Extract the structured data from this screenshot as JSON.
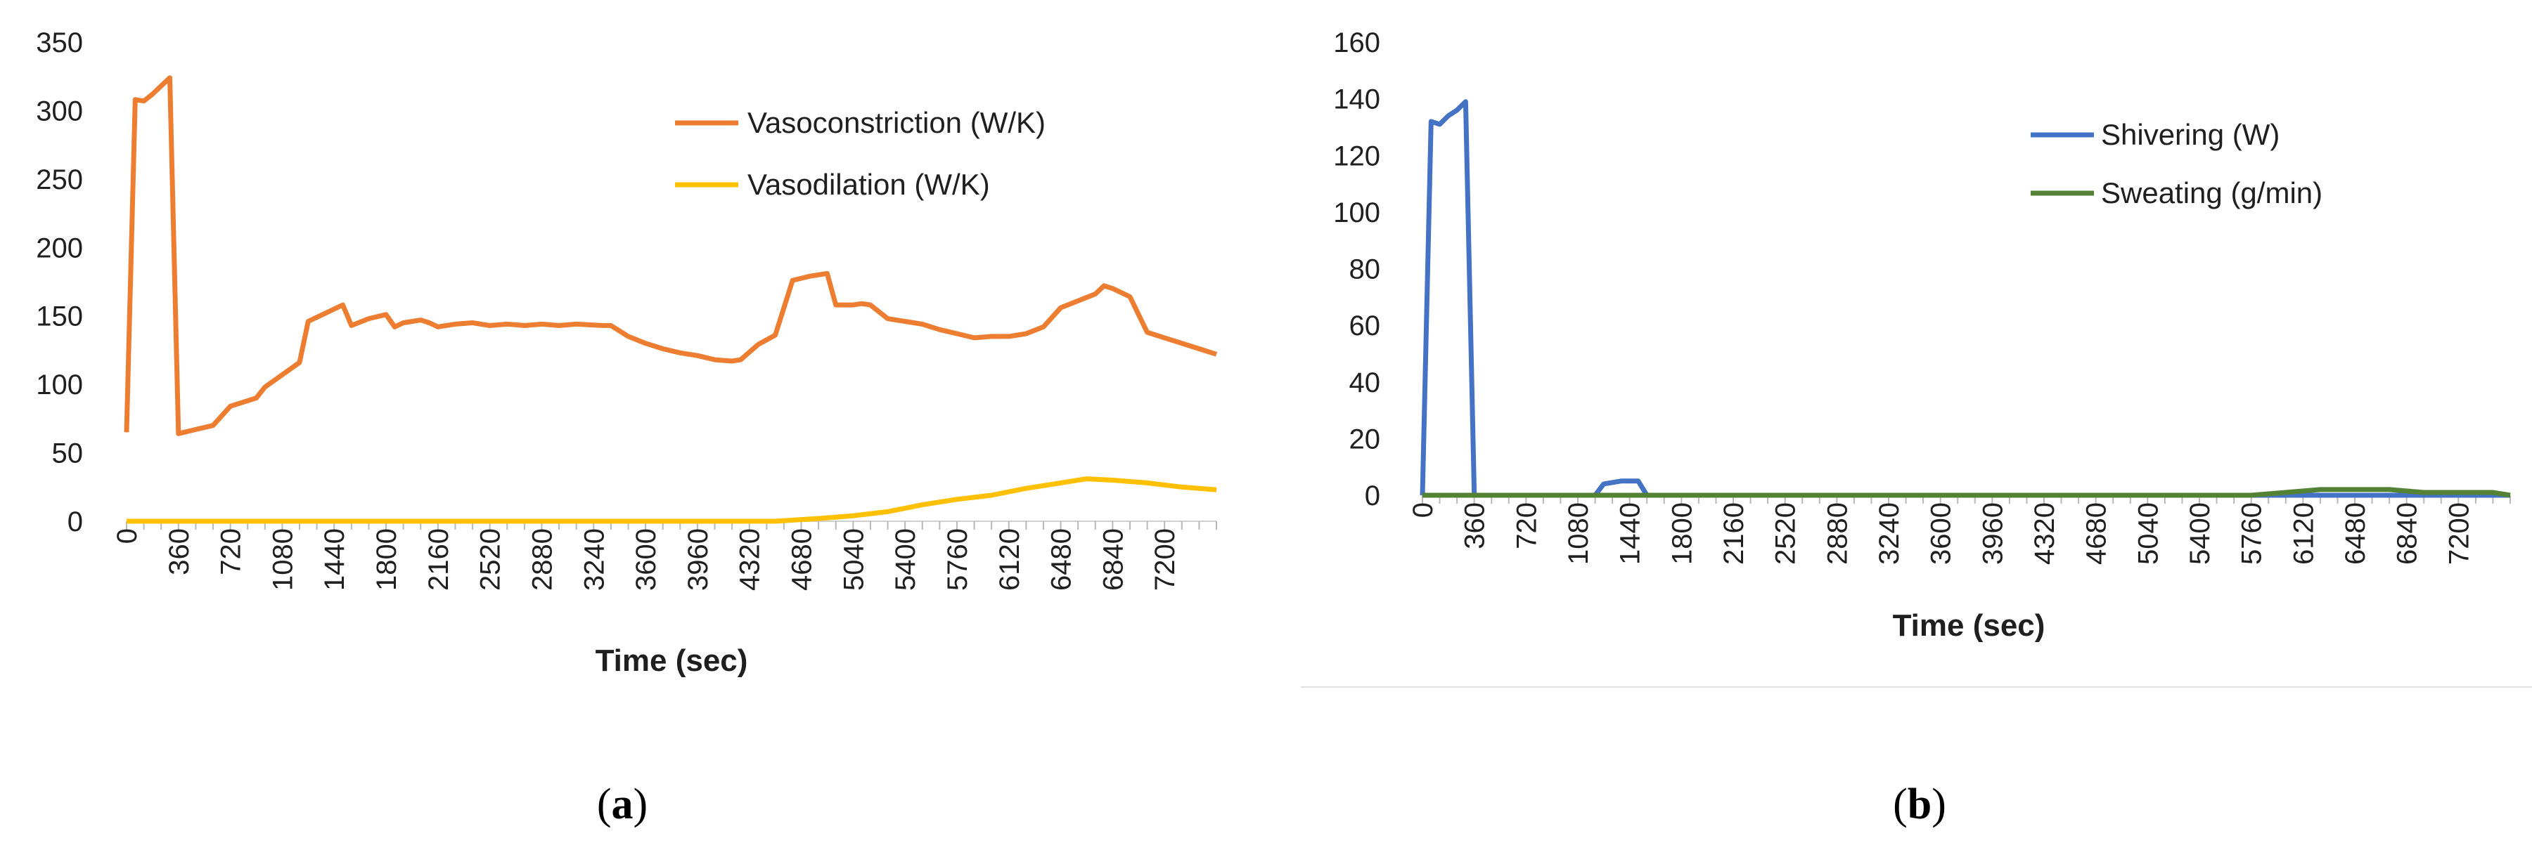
{
  "chart_data": [
    {
      "id": "a",
      "type": "line",
      "caption_letter": "a",
      "xlabel": "Time (sec)",
      "ylabel": "",
      "ylim": [
        0,
        350
      ],
      "yticks": [
        0,
        50,
        100,
        150,
        200,
        250,
        300,
        350
      ],
      "xlim": [
        0,
        7560
      ],
      "x_tick_labels": [
        "0",
        "360",
        "720",
        "1080",
        "1440",
        "1800",
        "2160",
        "2520",
        "2880",
        "3240",
        "3600",
        "3960",
        "4320",
        "4680",
        "5040",
        "5400",
        "5760",
        "6120",
        "6480",
        "6840",
        "7200"
      ],
      "legend_position": "top-right",
      "series": [
        {
          "name": "Vasoconstriction (W/K)",
          "color": "#ED7D31",
          "points": [
            [
              0,
              65
            ],
            [
              60,
              308
            ],
            [
              120,
              307
            ],
            [
              180,
              312
            ],
            [
              300,
              324
            ],
            [
              360,
              64
            ],
            [
              480,
              67
            ],
            [
              600,
              70
            ],
            [
              720,
              84
            ],
            [
              900,
              90
            ],
            [
              960,
              98
            ],
            [
              1200,
              116
            ],
            [
              1260,
              146
            ],
            [
              1500,
              158
            ],
            [
              1560,
              143
            ],
            [
              1680,
              148
            ],
            [
              1800,
              151
            ],
            [
              1860,
              142
            ],
            [
              1920,
              145
            ],
            [
              2040,
              147
            ],
            [
              2100,
              145
            ],
            [
              2160,
              142
            ],
            [
              2280,
              144
            ],
            [
              2400,
              145
            ],
            [
              2520,
              143
            ],
            [
              2640,
              144
            ],
            [
              2760,
              143
            ],
            [
              2880,
              144
            ],
            [
              3000,
              143
            ],
            [
              3120,
              144
            ],
            [
              3300,
              143
            ],
            [
              3360,
              143
            ],
            [
              3480,
              135
            ],
            [
              3600,
              130
            ],
            [
              3720,
              126
            ],
            [
              3840,
              123
            ],
            [
              3960,
              121
            ],
            [
              4080,
              118
            ],
            [
              4200,
              117
            ],
            [
              4260,
              118
            ],
            [
              4380,
              129
            ],
            [
              4500,
              136
            ],
            [
              4620,
              176
            ],
            [
              4740,
              179
            ],
            [
              4860,
              181
            ],
            [
              4920,
              158
            ],
            [
              5040,
              158
            ],
            [
              5100,
              159
            ],
            [
              5160,
              158
            ],
            [
              5280,
              148
            ],
            [
              5400,
              146
            ],
            [
              5520,
              144
            ],
            [
              5640,
              140
            ],
            [
              5760,
              137
            ],
            [
              5880,
              134
            ],
            [
              6000,
              135
            ],
            [
              6120,
              135
            ],
            [
              6240,
              137
            ],
            [
              6360,
              142
            ],
            [
              6480,
              156
            ],
            [
              6600,
              161
            ],
            [
              6720,
              166
            ],
            [
              6780,
              172
            ],
            [
              6840,
              170
            ],
            [
              6960,
              164
            ],
            [
              7080,
              138
            ],
            [
              7200,
              134
            ],
            [
              7320,
              130
            ],
            [
              7440,
              126
            ],
            [
              7560,
              122
            ]
          ]
        },
        {
          "name": "Vasodilation (W/K)",
          "color": "#FFC000",
          "points": [
            [
              0,
              0
            ],
            [
              4500,
              0
            ],
            [
              4800,
              2
            ],
            [
              5040,
              4
            ],
            [
              5280,
              7
            ],
            [
              5520,
              12
            ],
            [
              5760,
              16
            ],
            [
              6000,
              19
            ],
            [
              6240,
              24
            ],
            [
              6480,
              28
            ],
            [
              6660,
              31
            ],
            [
              6840,
              30
            ],
            [
              7080,
              28
            ],
            [
              7320,
              25
            ],
            [
              7560,
              23
            ]
          ]
        }
      ]
    },
    {
      "id": "b",
      "type": "line",
      "caption_letter": "b",
      "xlabel": "Time (sec)",
      "ylabel": "",
      "ylim": [
        0,
        160
      ],
      "yticks": [
        0,
        20,
        40,
        60,
        80,
        100,
        120,
        140,
        160
      ],
      "xlim": [
        0,
        7560
      ],
      "x_tick_labels": [
        "0",
        "360",
        "720",
        "1080",
        "1440",
        "1800",
        "2160",
        "2520",
        "2880",
        "3240",
        "3600",
        "3960",
        "4320",
        "4680",
        "5040",
        "5400",
        "5760",
        "6120",
        "6480",
        "6840",
        "7200"
      ],
      "legend_position": "top-right",
      "series": [
        {
          "name": "Shivering (W)",
          "color": "#4472C4",
          "points": [
            [
              0,
              0
            ],
            [
              60,
              132
            ],
            [
              120,
              131
            ],
            [
              180,
              134
            ],
            [
              240,
              136
            ],
            [
              300,
              139
            ],
            [
              360,
              0
            ],
            [
              1200,
              0
            ],
            [
              1260,
              4
            ],
            [
              1380,
              5
            ],
            [
              1500,
              5
            ],
            [
              1560,
              0
            ],
            [
              7560,
              0
            ]
          ]
        },
        {
          "name": "Sweating (g/min)",
          "color": "#548235",
          "points": [
            [
              0,
              0
            ],
            [
              5760,
              0
            ],
            [
              6000,
              1
            ],
            [
              6240,
              2
            ],
            [
              6480,
              2
            ],
            [
              6720,
              2
            ],
            [
              6960,
              1
            ],
            [
              7200,
              1
            ],
            [
              7440,
              1
            ],
            [
              7560,
              0
            ]
          ]
        }
      ]
    }
  ]
}
